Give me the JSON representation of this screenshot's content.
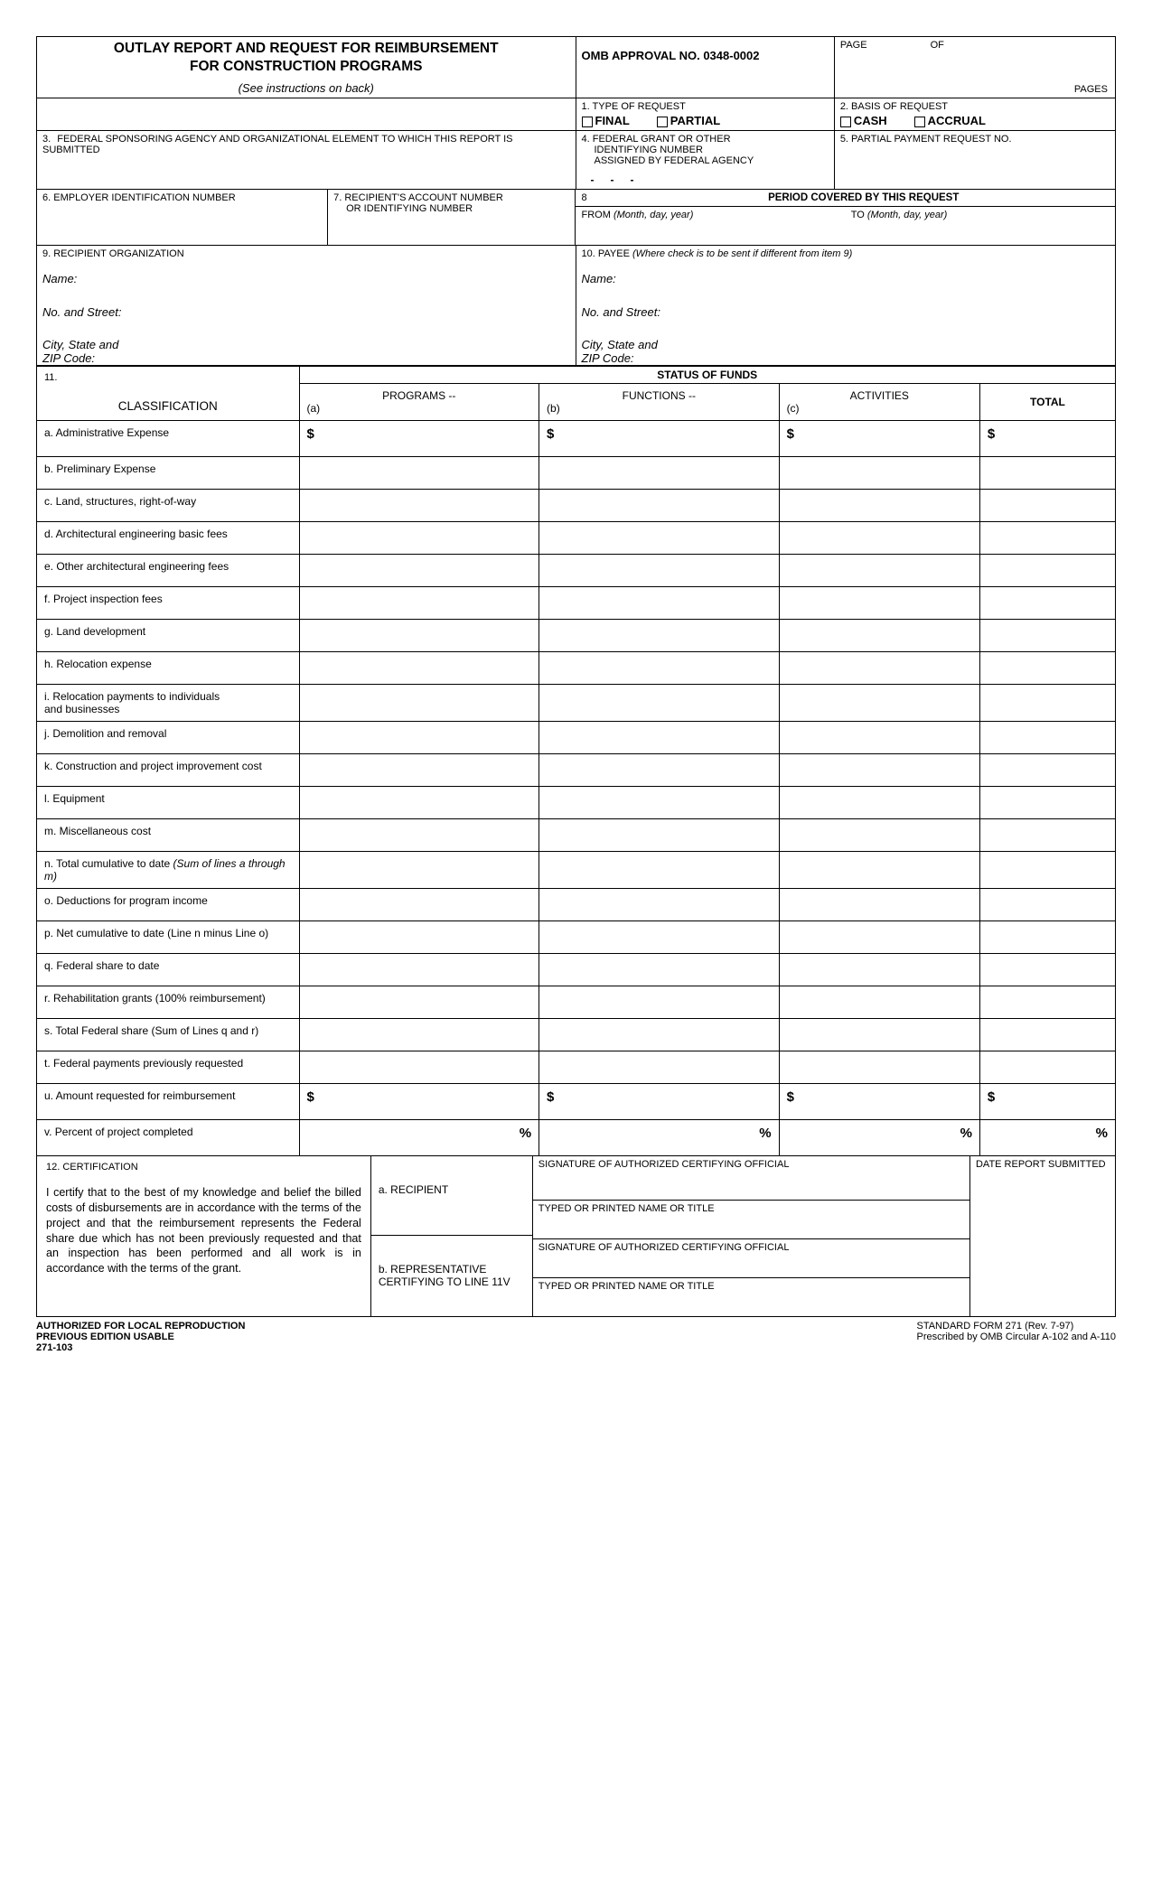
{
  "header": {
    "title_line1": "OUTLAY REPORT AND REQUEST FOR REIMBURSEMENT",
    "title_line2": "FOR CONSTRUCTION PROGRAMS",
    "instructions": "(See instructions on back)",
    "omb": "OMB APPROVAL NO. 0348-0002",
    "page": "PAGE",
    "of": "OF",
    "pages": "PAGES"
  },
  "box1": {
    "label": "1. TYPE OF REQUEST",
    "final": "FINAL",
    "partial": "PARTIAL"
  },
  "box2": {
    "label": "2.  BASIS OF REQUEST",
    "cash": "CASH",
    "accrual": "ACCRUAL"
  },
  "box3": {
    "num": "3.",
    "label": "FEDERAL SPONSORING AGENCY AND ORGANIZATIONAL ELEMENT TO WHICH THIS REPORT IS SUBMITTED"
  },
  "box4": {
    "line1": "4.  FEDERAL GRANT OR OTHER",
    "line2": "IDENTIFYING NUMBER",
    "line3": "ASSIGNED BY FEDERAL AGENCY"
  },
  "box5": {
    "label": "5.  PARTIAL PAYMENT REQUEST NO."
  },
  "box6": {
    "label": "6.  EMPLOYER IDENTIFICATION NUMBER"
  },
  "box7": {
    "label": "7.  RECIPIENT'S ACCOUNT NUMBER",
    "sub": "OR IDENTIFYING NUMBER"
  },
  "box8": {
    "num": "8",
    "period": "PERIOD COVERED BY THIS REQUEST",
    "from": "FROM",
    "from_hint": "(Month, day, year)",
    "to": "TO",
    "to_hint": "(Month, day, year)"
  },
  "box9": {
    "label": "9.  RECIPIENT ORGANIZATION",
    "name": "Name:",
    "street": "No. and Street:",
    "city": "City, State and",
    "zip": "ZIP Code:"
  },
  "box10": {
    "label": "10. PAYEE",
    "hint": "(Where check is to be sent if different from item 9)",
    "name": "Name:",
    "street": "No. and Street:",
    "city": "City, State and",
    "zip": "ZIP Code:"
  },
  "box11": {
    "num": "11."
  },
  "funds": {
    "title": "STATUS OF FUNDS",
    "classification": "CLASSIFICATION",
    "programs": "PROGRAMS --",
    "functions": "FUNCTIONS --",
    "activities": "ACTIVITIES",
    "total": "TOTAL",
    "col_a": "(a)",
    "col_b": "(b)",
    "col_c": "(c)",
    "rows": [
      {
        "label": "a.  Administrative Expense",
        "dollar": true
      },
      {
        "label": "b.  Preliminary Expense"
      },
      {
        "label": "c.  Land, structures, right-of-way"
      },
      {
        "label": "d.  Architectural engineering basic fees"
      },
      {
        "label": "e.  Other architectural engineering fees"
      },
      {
        "label": "f.  Project inspection fees"
      },
      {
        "label": "g.  Land development"
      },
      {
        "label": "h.  Relocation expense"
      },
      {
        "label": "i.  Relocation payments to individuals\n     and businesses"
      },
      {
        "label": "j.  Demolition and removal"
      },
      {
        "label": "k.  Construction and project improvement cost"
      },
      {
        "label": "l.  Equipment"
      },
      {
        "label": "m.  Miscellaneous cost"
      },
      {
        "label": "n.  Total cumulative to date ",
        "ital": "(Sum of lines a through m)"
      },
      {
        "label": "o.  Deductions for program income"
      },
      {
        "label": "p.  Net cumulative to date (Line n minus Line o)"
      },
      {
        "label": "q.  Federal share to date"
      },
      {
        "label": "r.  Rehabilitation grants (100% reimbursement)"
      },
      {
        "label": "s.  Total Federal share (Sum of Lines q and r)"
      },
      {
        "label": "t.  Federal payments previously requested"
      },
      {
        "label": "u.  Amount requested for reimbursement",
        "dollar": true
      },
      {
        "label": "v.  Percent of project completed",
        "percent": true
      }
    ]
  },
  "cert": {
    "label": "12. CERTIFICATION",
    "text": "I certify that to the best of my knowledge and belief the billed costs of disbursements are in accordance with the terms of the project and that the reimbursement represents the Federal share due which has not been previously requested and that an inspection has been performed and all work is in accordance with the terms of the grant.",
    "recipient": "a.  RECIPIENT",
    "rep_line1": "b.  REPRESENTATIVE",
    "rep_line2": "CERTIFYING TO LINE 11V",
    "sig": "SIGNATURE OF AUTHORIZED CERTIFYING OFFICIAL",
    "typed": "TYPED OR PRINTED NAME OR TITLE",
    "date": "DATE REPORT SUBMITTED"
  },
  "footer": {
    "auth": "AUTHORIZED FOR LOCAL REPRODUCTION",
    "prev": "PREVIOUS EDITION USABLE",
    "code": "271-103",
    "std": "STANDARD FORM 271 (Rev. 7-97)",
    "prescribed": "Prescribed by OMB Circular A-102 and A-110"
  },
  "sym": {
    "dollar": "$",
    "percent": "%",
    "dash": "-"
  }
}
